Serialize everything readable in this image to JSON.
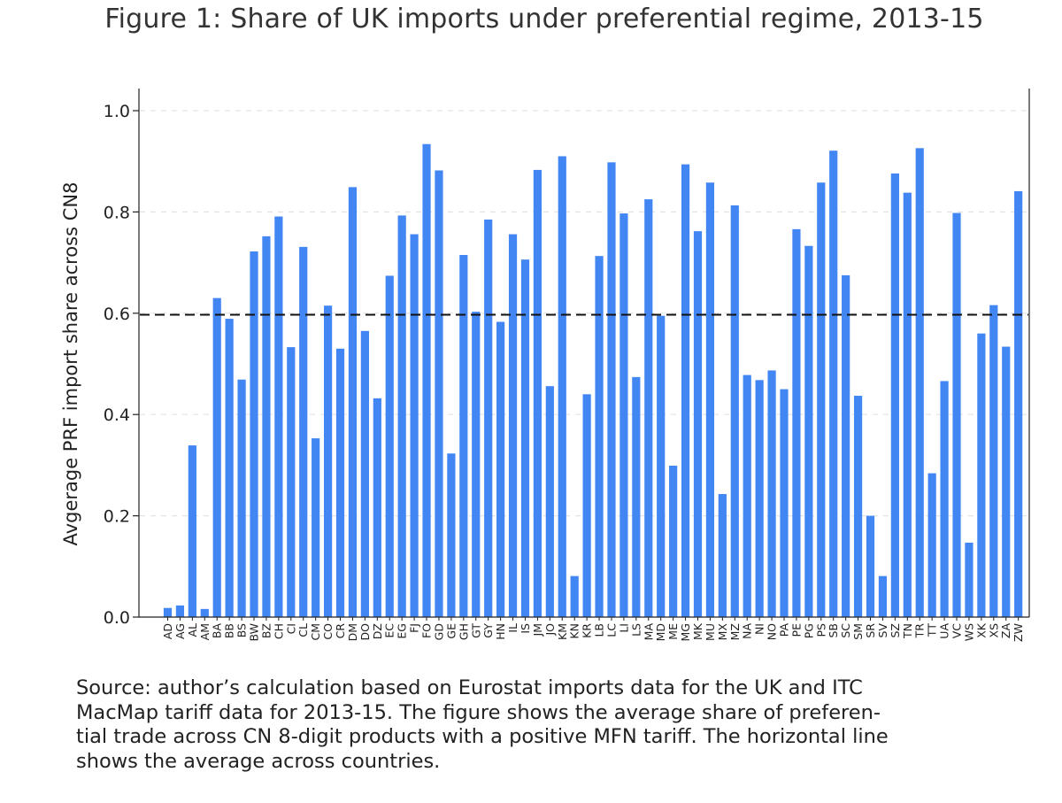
{
  "chart_data": {
    "type": "bar",
    "title": "Figure 1: Share of UK imports under preferential regime, 2013-15",
    "xlabel": "",
    "ylabel": "Avgerage PRF import share across CN8",
    "ylim": [
      0,
      1
    ],
    "yticks": [
      "0.0",
      "0.2",
      "0.4",
      "0.6",
      "0.8",
      "1.0"
    ],
    "ytick_values": [
      0,
      0.2,
      0.4,
      0.6,
      0.8,
      1.0
    ],
    "grid": true,
    "bar_color": "#4286f4",
    "reference_line": {
      "value": 0.597,
      "style": "dashed",
      "color": "#111111",
      "meaning": "average across countries"
    },
    "categories": [
      "AD",
      "AG",
      "AL",
      "AM",
      "BA",
      "BB",
      "BS",
      "BW",
      "BZ",
      "CH",
      "CI",
      "CL",
      "CM",
      "CO",
      "CR",
      "DM",
      "DO",
      "DZ",
      "EC",
      "EG",
      "FJ",
      "FO",
      "GD",
      "GE",
      "GH",
      "GT",
      "GY",
      "HN",
      "IL",
      "IS",
      "JM",
      "JO",
      "KM",
      "KN",
      "KR",
      "LB",
      "LC",
      "LI",
      "LS",
      "MA",
      "MD",
      "ME",
      "MG",
      "MK",
      "MU",
      "MX",
      "MZ",
      "NA",
      "NI",
      "NO",
      "PA",
      "PE",
      "PG",
      "PS",
      "SB",
      "SC",
      "SM",
      "SR",
      "SV",
      "SZ",
      "TN",
      "TR",
      "TT",
      "UA",
      "VC",
      "WS",
      "XK",
      "XS",
      "ZA",
      "ZW"
    ],
    "values": [
      0.018,
      0.023,
      0.339,
      0.016,
      0.63,
      0.589,
      0.469,
      0.722,
      0.752,
      0.791,
      0.533,
      0.731,
      0.353,
      0.615,
      0.53,
      0.849,
      0.565,
      0.432,
      0.674,
      0.793,
      0.756,
      0.934,
      0.882,
      0.323,
      0.715,
      0.603,
      0.785,
      0.583,
      0.756,
      0.706,
      0.883,
      0.456,
      0.91,
      0.081,
      0.44,
      0.713,
      0.898,
      0.797,
      0.474,
      0.825,
      0.595,
      0.299,
      0.894,
      0.762,
      0.858,
      0.243,
      0.813,
      0.478,
      0.468,
      0.487,
      0.45,
      0.766,
      0.733,
      0.858,
      0.921,
      0.675,
      0.437,
      0.2,
      0.081,
      0.876,
      0.838,
      0.926,
      0.284,
      0.466,
      0.798,
      0.147,
      0.56,
      0.616,
      0.534,
      0.841
    ]
  },
  "caption": {
    "lines": [
      "Source:  author’s calculation based on Eurostat imports data for the UK and ITC",
      "MacMap tariff data for 2013-15. The figure shows the average share of preferen-",
      "tial trade across CN 8-digit products with a positive MFN tariff. The horizontal line",
      "shows the average across countries."
    ]
  }
}
